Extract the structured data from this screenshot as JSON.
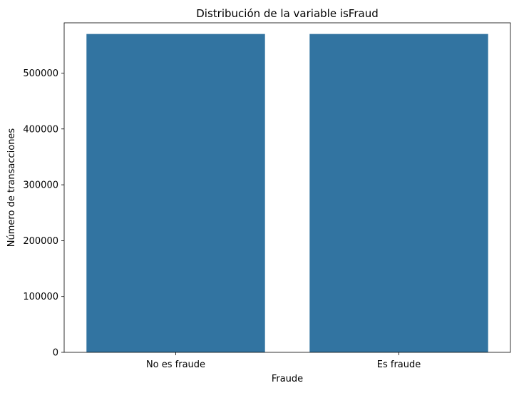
{
  "chart_data": {
    "type": "bar",
    "title": "Distribución de la variable isFraud",
    "xlabel": "Fraude",
    "ylabel": "Número de transacciones",
    "categories": [
      "No es fraude",
      "Es fraude"
    ],
    "values": [
      570000,
      570000
    ],
    "ylim": [
      0,
      590000
    ],
    "yticks": [
      0,
      100000,
      200000,
      300000,
      400000,
      500000
    ],
    "ytick_labels": [
      "0",
      "100000",
      "200000",
      "300000",
      "400000",
      "500000"
    ],
    "grid": false,
    "legend": "none",
    "bar_color": "#3274a1"
  }
}
